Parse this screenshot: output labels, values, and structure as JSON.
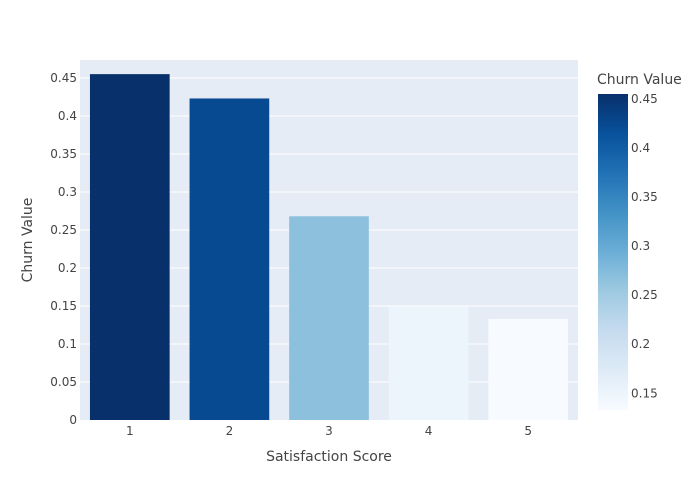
{
  "chart_data": {
    "type": "bar",
    "title": "",
    "xlabel": "Satisfaction Score",
    "ylabel": "Churn Value",
    "categories": [
      "1",
      "2",
      "3",
      "4",
      "5"
    ],
    "values": [
      0.455,
      0.423,
      0.268,
      0.149,
      0.133
    ],
    "ylim": [
      0,
      0.4736
    ],
    "yticks": [
      0,
      0.05,
      0.1,
      0.15,
      0.2,
      0.25,
      0.3,
      0.35,
      0.4,
      0.45
    ],
    "ytick_labels": [
      "0",
      "0.05",
      "0.1",
      "0.15",
      "0.2",
      "0.25",
      "0.3",
      "0.35",
      "0.4",
      "0.45"
    ],
    "grid": true,
    "colorscale": "Blues",
    "colorbar": {
      "title": "Churn Value",
      "range": [
        0.133,
        0.455
      ],
      "ticks": [
        0.15,
        0.2,
        0.25,
        0.3,
        0.35,
        0.4,
        0.45
      ],
      "tick_labels": [
        "0.15",
        "0.2",
        "0.25",
        "0.3",
        "0.35",
        "0.4",
        "0.45"
      ]
    },
    "plot_background": "#e5ecf6"
  }
}
